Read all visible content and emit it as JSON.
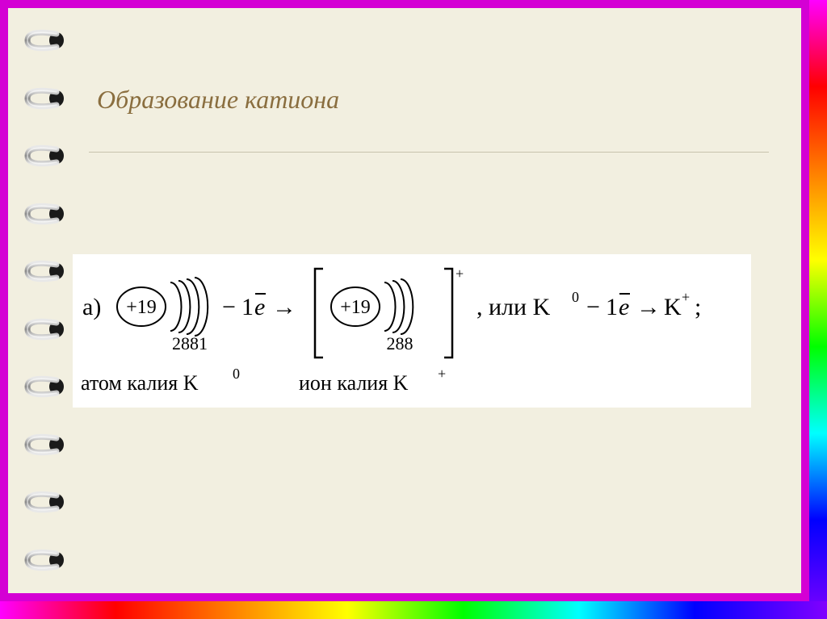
{
  "slide": {
    "title": "Образование катиона",
    "title_color": "#8a6e3f",
    "background_color": "#f2efe0",
    "rule_color": "#c7c2ad"
  },
  "frame": {
    "magenta": "#d400d4",
    "rainbow_stops": [
      "#ff00ff",
      "#ff0000",
      "#ff8000",
      "#ffff00",
      "#00ff00",
      "#00ffff",
      "#0000ff",
      "#8000ff"
    ]
  },
  "spiral": {
    "ring_count": 10,
    "metal_light": "#e8e8e8",
    "metal_dark": "#8a8a8a",
    "hole_color": "#1a1a1a"
  },
  "diagram": {
    "background": "#ffffff",
    "label_a": "а)",
    "atom": {
      "nucleus_text": "+19",
      "shells_text": "2881",
      "shell_count": 4,
      "caption_prefix": "атом калия K",
      "caption_super": "0"
    },
    "transition": {
      "minus": "−",
      "coeff": "1",
      "e_symbol": "e",
      "e_bar": "‾",
      "arrow": "→"
    },
    "ion": {
      "nucleus_text": "+19",
      "shells_text": "288",
      "shell_count": 3,
      "bracket_super": "+",
      "caption_prefix": "ион калия K",
      "caption_super": "+"
    },
    "equation": {
      "prefix": ", или K",
      "k0_super": "0",
      "minus": "−",
      "coeff": "1",
      "e_symbol": "e",
      "e_bar": "‾",
      "arrow": "→",
      "k_text": "K",
      "k_plus_super": "+",
      "terminator": ";"
    },
    "font_main": 30,
    "font_label": 26,
    "font_super": 18,
    "font_shells": 22
  }
}
